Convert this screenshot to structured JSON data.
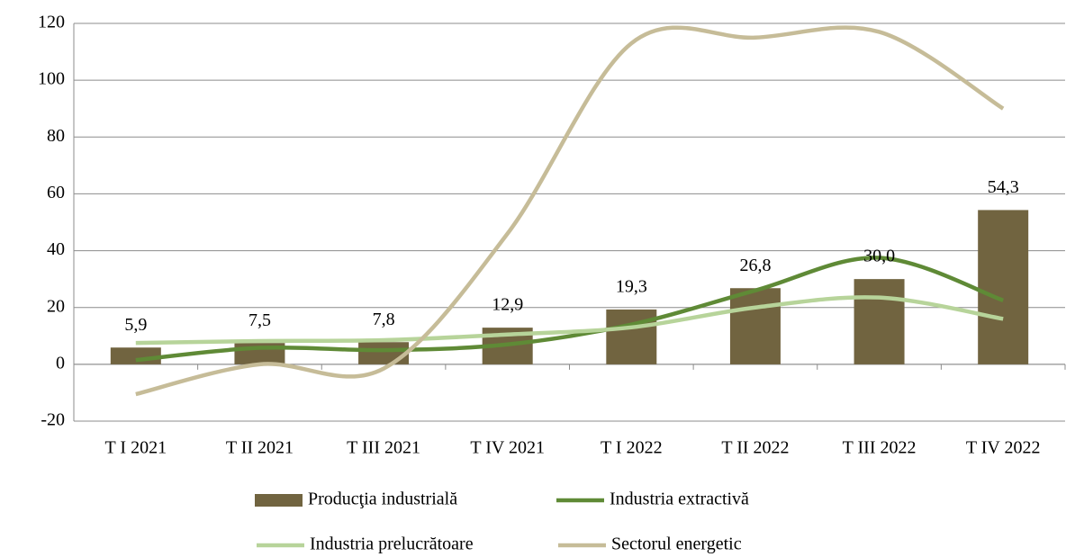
{
  "chart_data": {
    "type": "bar",
    "categories": [
      "T I 2021",
      "T II 2021",
      "T III 2021",
      "T IV 2021",
      "T I 2022",
      "T II 2022",
      "T III 2022",
      "T IV 2022"
    ],
    "series": [
      {
        "name": "Producţia industrială",
        "color": "#716440",
        "type": "bar",
        "values": [
          5.9,
          7.5,
          7.8,
          12.9,
          19.3,
          26.8,
          30.0,
          54.3
        ],
        "value_labels": [
          "5,9",
          "7,5",
          "7,8",
          "12,9",
          "19,3",
          "26,8",
          "30,0",
          "54,3"
        ]
      },
      {
        "name": "Industria extractivă",
        "color": "#5f8a36",
        "type": "line",
        "values": [
          1.5,
          5.8,
          5,
          7,
          14,
          26,
          37.5,
          22.5
        ]
      },
      {
        "name": "Industria prelucrătoare",
        "color": "#b7d49a",
        "type": "line",
        "values": [
          7.5,
          8.2,
          8.5,
          10.5,
          13,
          20,
          23.5,
          16
        ]
      },
      {
        "name": "Sectorul energetic",
        "color": "#c6bc98",
        "type": "line",
        "values": [
          -10.5,
          0,
          -1.5,
          46,
          113,
          115,
          117,
          90
        ]
      }
    ],
    "ylim": [
      -20,
      120
    ],
    "yticks": [
      -20,
      0,
      20,
      40,
      60,
      80,
      100,
      120
    ],
    "grid": true
  }
}
